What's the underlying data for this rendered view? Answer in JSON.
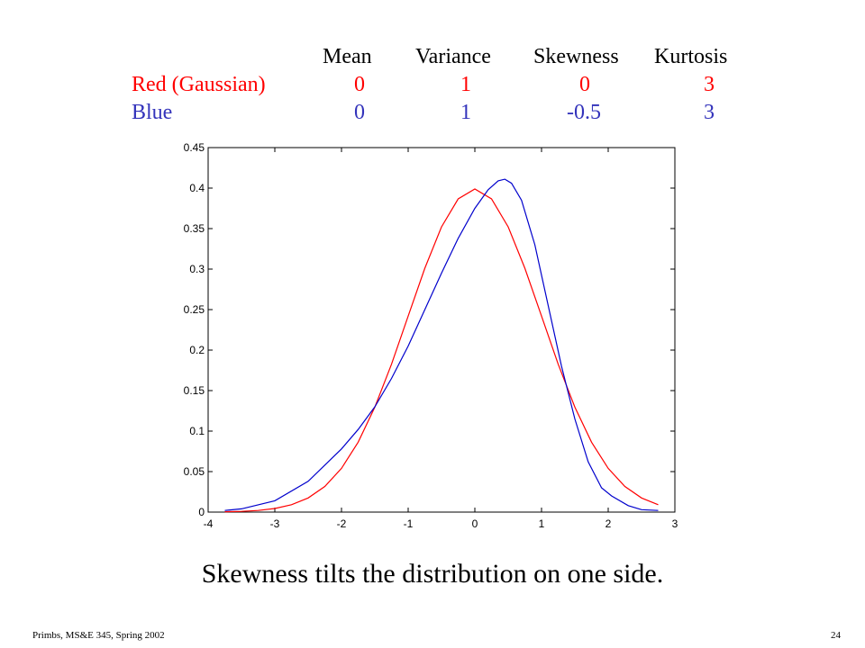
{
  "stats_table": {
    "headers": [
      "Mean",
      "Variance",
      "Skewness",
      "Kurtosis"
    ],
    "rows": [
      {
        "label": "Red (Gaussian)",
        "values": [
          "0",
          "1",
          "0",
          "3"
        ],
        "color": "#ff0000"
      },
      {
        "label": "Blue",
        "values": [
          "0",
          "1",
          "-0.5",
          "3"
        ],
        "color": "#3333bb"
      }
    ]
  },
  "caption": "Skewness tilts the distribution on one side.",
  "footer": "Primbs, MS&E 345, Spring 2002",
  "page_number": "24",
  "chart_data": {
    "type": "line",
    "title": "",
    "xlabel": "",
    "ylabel": "",
    "xlim": [
      -4,
      3
    ],
    "ylim": [
      0,
      0.45
    ],
    "xticks": [
      "-4",
      "-3",
      "-2",
      "-1",
      "0",
      "1",
      "2",
      "3"
    ],
    "yticks": [
      "0",
      "0.05",
      "0.1",
      "0.15",
      "0.2",
      "0.25",
      "0.3",
      "0.35",
      "0.4",
      "0.45"
    ],
    "grid": false,
    "series": [
      {
        "color": "#ff0000",
        "x": [
          -3.75,
          -3.5,
          -3.25,
          -3.0,
          -2.75,
          -2.5,
          -2.25,
          -2.0,
          -1.75,
          -1.5,
          -1.25,
          -1.0,
          -0.75,
          -0.5,
          -0.25,
          0.0,
          0.25,
          0.5,
          0.75,
          1.0,
          1.25,
          1.5,
          1.75,
          2.0,
          2.25,
          2.5,
          2.75
        ],
        "y": [
          0.0004,
          0.0009,
          0.002,
          0.0044,
          0.0091,
          0.0175,
          0.0317,
          0.054,
          0.0863,
          0.1295,
          0.1826,
          0.242,
          0.3011,
          0.3521,
          0.3867,
          0.3989,
          0.3867,
          0.3521,
          0.3011,
          0.242,
          0.1826,
          0.1295,
          0.0863,
          0.054,
          0.0317,
          0.0175,
          0.0091
        ]
      },
      {
        "color": "#0000cc",
        "x": [
          -3.75,
          -3.5,
          -3.0,
          -2.5,
          -2.0,
          -1.75,
          -1.5,
          -1.25,
          -1.0,
          -0.75,
          -0.5,
          -0.25,
          0.0,
          0.2,
          0.35,
          0.45,
          0.55,
          0.7,
          0.9,
          1.1,
          1.3,
          1.5,
          1.7,
          1.9,
          2.05,
          2.3,
          2.5,
          2.75
        ],
        "y": [
          0.002,
          0.004,
          0.014,
          0.038,
          0.078,
          0.102,
          0.13,
          0.165,
          0.205,
          0.25,
          0.295,
          0.338,
          0.375,
          0.398,
          0.409,
          0.411,
          0.406,
          0.385,
          0.33,
          0.255,
          0.18,
          0.115,
          0.062,
          0.03,
          0.02,
          0.008,
          0.003,
          0.002
        ]
      }
    ]
  }
}
